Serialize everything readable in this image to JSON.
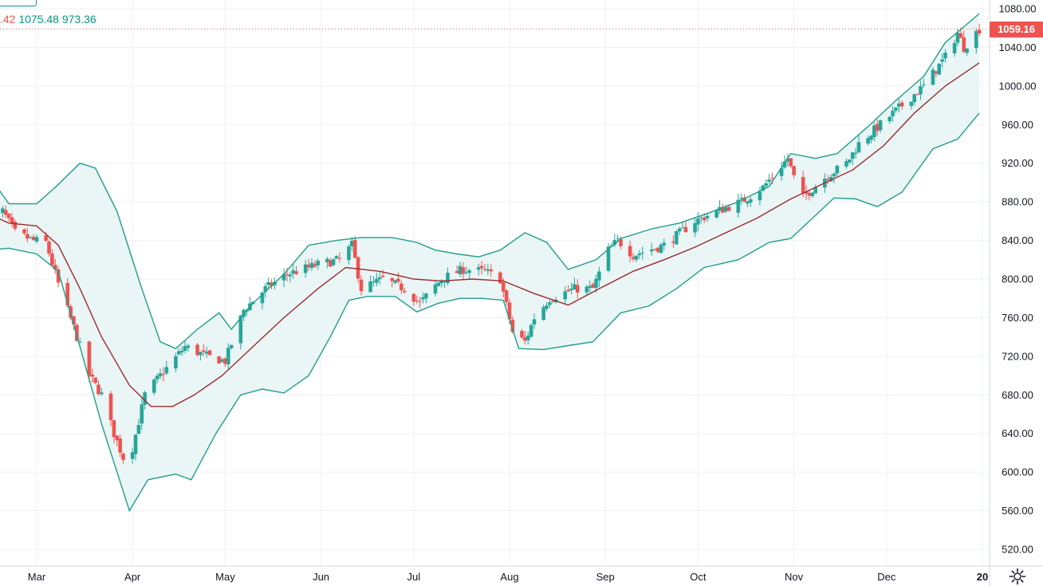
{
  "legend": {
    "partial_value": ".42",
    "upper": "1075.48",
    "lower": "973.36"
  },
  "last_price": "1059.16",
  "colors": {
    "up": "#26a69a",
    "down": "#ef5350",
    "band": "#1f9e89",
    "basis": "#9c2b2b",
    "fill": "#eaf5f6",
    "grid": "#eef0f3"
  },
  "chart_data": {
    "type": "candlestick",
    "indicator": "Bollinger Bands",
    "title": "",
    "ylim": [
      500,
      1090
    ],
    "y_ticks": [
      1080,
      1040,
      1000,
      960,
      920,
      880,
      840,
      800,
      760,
      720,
      680,
      640,
      600,
      560,
      520
    ],
    "y_tick_labels": [
      "1080.00",
      "1040.00",
      "1000.00",
      "960.00",
      "920.00",
      "880.00",
      "840.00",
      "800.00",
      "760.00",
      "720.00",
      "680.00",
      "640.00",
      "600.00",
      "560.00",
      "520.00"
    ],
    "x_ticks": [
      "Mar",
      "Apr",
      "May",
      "Jun",
      "Jul",
      "Aug",
      "Sep",
      "Oct",
      "Nov",
      "Dec",
      "20"
    ],
    "x_tick_dates": [
      "2019-03-01",
      "2019-04-01",
      "2019-05-01",
      "2019-06-01",
      "2019-07-01",
      "2019-08-01",
      "2019-09-01",
      "2019-10-01",
      "2019-11-01",
      "2019-12-01",
      "2020-01-01"
    ],
    "x_range": [
      "2019-02-13",
      "2019-12-31"
    ],
    "last_price": 1059.16,
    "close_anchors": [
      [
        "2019-02-13",
        865
      ],
      [
        "2019-02-18",
        870
      ],
      [
        "2019-02-22",
        848
      ],
      [
        "2019-02-28",
        840
      ],
      [
        "2019-03-04",
        838
      ],
      [
        "2019-03-08",
        795
      ],
      [
        "2019-03-13",
        750
      ],
      [
        "2019-03-18",
        700
      ],
      [
        "2019-03-22",
        680
      ],
      [
        "2019-03-26",
        640
      ],
      [
        "2019-03-29",
        615
      ],
      [
        "2019-04-01",
        625
      ],
      [
        "2019-04-05",
        680
      ],
      [
        "2019-04-10",
        700
      ],
      [
        "2019-04-18",
        730
      ],
      [
        "2019-04-25",
        720
      ],
      [
        "2019-05-01",
        715
      ],
      [
        "2019-05-07",
        768
      ],
      [
        "2019-05-14",
        790
      ],
      [
        "2019-05-21",
        805
      ],
      [
        "2019-05-31",
        815
      ],
      [
        "2019-06-07",
        820
      ],
      [
        "2019-06-11",
        835
      ],
      [
        "2019-06-14",
        790
      ],
      [
        "2019-06-21",
        800
      ],
      [
        "2019-06-28",
        790
      ],
      [
        "2019-07-03",
        775
      ],
      [
        "2019-07-10",
        800
      ],
      [
        "2019-07-17",
        810
      ],
      [
        "2019-07-24",
        808
      ],
      [
        "2019-07-29",
        800
      ],
      [
        "2019-08-02",
        745
      ],
      [
        "2019-08-06",
        735
      ],
      [
        "2019-08-09",
        760
      ],
      [
        "2019-08-14",
        780
      ],
      [
        "2019-08-22",
        790
      ],
      [
        "2019-08-28",
        790
      ],
      [
        "2019-09-02",
        830
      ],
      [
        "2019-09-05",
        840
      ],
      [
        "2019-09-10",
        825
      ],
      [
        "2019-09-20",
        835
      ],
      [
        "2019-09-30",
        860
      ],
      [
        "2019-10-07",
        870
      ],
      [
        "2019-10-15",
        880
      ],
      [
        "2019-10-22",
        895
      ],
      [
        "2019-10-30",
        925
      ],
      [
        "2019-11-01",
        905
      ],
      [
        "2019-11-04",
        885
      ],
      [
        "2019-11-11",
        905
      ],
      [
        "2019-11-18",
        920
      ],
      [
        "2019-11-22",
        940
      ],
      [
        "2019-11-29",
        960
      ],
      [
        "2019-12-06",
        980
      ],
      [
        "2019-12-13",
        1000
      ],
      [
        "2019-12-20",
        1030
      ],
      [
        "2019-12-24",
        1055
      ],
      [
        "2019-12-26",
        1040
      ],
      [
        "2019-12-31",
        1059
      ]
    ],
    "upper_band": [
      [
        "2019-02-13",
        910
      ],
      [
        "2019-02-20",
        878
      ],
      [
        "2019-03-01",
        878
      ],
      [
        "2019-03-07",
        895
      ],
      [
        "2019-03-15",
        920
      ],
      [
        "2019-03-20",
        915
      ],
      [
        "2019-03-27",
        870
      ],
      [
        "2019-04-04",
        790
      ],
      [
        "2019-04-10",
        735
      ],
      [
        "2019-04-15",
        728
      ],
      [
        "2019-04-22",
        748
      ],
      [
        "2019-04-29",
        765
      ],
      [
        "2019-05-03",
        748
      ],
      [
        "2019-05-10",
        775
      ],
      [
        "2019-05-20",
        805
      ],
      [
        "2019-05-28",
        835
      ],
      [
        "2019-06-06",
        840
      ],
      [
        "2019-06-14",
        843
      ],
      [
        "2019-06-24",
        843
      ],
      [
        "2019-07-02",
        838
      ],
      [
        "2019-07-08",
        830
      ],
      [
        "2019-07-15",
        826
      ],
      [
        "2019-07-22",
        823
      ],
      [
        "2019-07-29",
        830
      ],
      [
        "2019-08-06",
        848
      ],
      [
        "2019-08-13",
        838
      ],
      [
        "2019-08-20",
        810
      ],
      [
        "2019-08-29",
        820
      ],
      [
        "2019-09-06",
        842
      ],
      [
        "2019-09-16",
        852
      ],
      [
        "2019-09-25",
        858
      ],
      [
        "2019-10-04",
        868
      ],
      [
        "2019-10-14",
        880
      ],
      [
        "2019-10-24",
        896
      ],
      [
        "2019-10-31",
        930
      ],
      [
        "2019-11-08",
        925
      ],
      [
        "2019-11-15",
        930
      ],
      [
        "2019-11-25",
        958
      ],
      [
        "2019-12-04",
        985
      ],
      [
        "2019-12-13",
        1010
      ],
      [
        "2019-12-20",
        1045
      ],
      [
        "2019-12-31",
        1075
      ]
    ],
    "basis": [
      [
        "2019-02-13",
        868
      ],
      [
        "2019-02-20",
        858
      ],
      [
        "2019-03-01",
        855
      ],
      [
        "2019-03-08",
        835
      ],
      [
        "2019-03-15",
        790
      ],
      [
        "2019-03-22",
        740
      ],
      [
        "2019-03-31",
        690
      ],
      [
        "2019-04-07",
        668
      ],
      [
        "2019-04-14",
        668
      ],
      [
        "2019-04-21",
        680
      ],
      [
        "2019-04-30",
        700
      ],
      [
        "2019-05-10",
        730
      ],
      [
        "2019-05-20",
        760
      ],
      [
        "2019-05-31",
        790
      ],
      [
        "2019-06-09",
        812
      ],
      [
        "2019-06-20",
        808
      ],
      [
        "2019-07-01",
        800
      ],
      [
        "2019-07-10",
        798
      ],
      [
        "2019-07-20",
        800
      ],
      [
        "2019-07-30",
        798
      ],
      [
        "2019-08-09",
        785
      ],
      [
        "2019-08-20",
        773
      ],
      [
        "2019-08-30",
        790
      ],
      [
        "2019-09-10",
        808
      ],
      [
        "2019-09-20",
        820
      ],
      [
        "2019-09-30",
        833
      ],
      [
        "2019-10-10",
        848
      ],
      [
        "2019-10-20",
        863
      ],
      [
        "2019-10-31",
        883
      ],
      [
        "2019-11-10",
        898
      ],
      [
        "2019-11-20",
        913
      ],
      [
        "2019-11-30",
        938
      ],
      [
        "2019-12-10",
        972
      ],
      [
        "2019-12-20",
        1000
      ],
      [
        "2019-12-31",
        1024
      ]
    ],
    "lower_band": [
      [
        "2019-02-13",
        830
      ],
      [
        "2019-02-20",
        832
      ],
      [
        "2019-03-01",
        826
      ],
      [
        "2019-03-08",
        808
      ],
      [
        "2019-03-15",
        730
      ],
      [
        "2019-03-22",
        650
      ],
      [
        "2019-03-31",
        560
      ],
      [
        "2019-04-06",
        592
      ],
      [
        "2019-04-15",
        598
      ],
      [
        "2019-04-20",
        592
      ],
      [
        "2019-04-28",
        640
      ],
      [
        "2019-05-06",
        680
      ],
      [
        "2019-05-13",
        686
      ],
      [
        "2019-05-20",
        682
      ],
      [
        "2019-05-28",
        700
      ],
      [
        "2019-06-04",
        740
      ],
      [
        "2019-06-10",
        778
      ],
      [
        "2019-06-16",
        782
      ],
      [
        "2019-06-25",
        782
      ],
      [
        "2019-07-02",
        766
      ],
      [
        "2019-07-09",
        775
      ],
      [
        "2019-07-16",
        780
      ],
      [
        "2019-07-23",
        780
      ],
      [
        "2019-07-30",
        778
      ],
      [
        "2019-08-04",
        728
      ],
      [
        "2019-08-12",
        727
      ],
      [
        "2019-08-20",
        731
      ],
      [
        "2019-08-28",
        735
      ],
      [
        "2019-09-06",
        765
      ],
      [
        "2019-09-15",
        772
      ],
      [
        "2019-09-24",
        790
      ],
      [
        "2019-10-03",
        812
      ],
      [
        "2019-10-14",
        820
      ],
      [
        "2019-10-24",
        838
      ],
      [
        "2019-10-31",
        842
      ],
      [
        "2019-11-06",
        860
      ],
      [
        "2019-11-14",
        884
      ],
      [
        "2019-11-21",
        883
      ],
      [
        "2019-11-28",
        875
      ],
      [
        "2019-12-06",
        890
      ],
      [
        "2019-12-16",
        935
      ],
      [
        "2019-12-24",
        945
      ],
      [
        "2019-12-31",
        972
      ]
    ]
  }
}
